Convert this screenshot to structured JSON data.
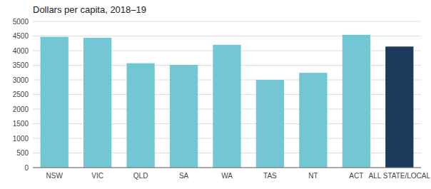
{
  "chart_data": {
    "type": "bar",
    "title": "Dollars per capita, 2018–19",
    "categories": [
      "NSW",
      "VIC",
      "QLD",
      "SA",
      "WA",
      "TAS",
      "NT",
      "ACT",
      "ALL STATE/LOCAL"
    ],
    "values": [
      4470,
      4440,
      3570,
      3510,
      4200,
      3000,
      3240,
      4540,
      4140
    ],
    "colors": [
      "#73C6D4",
      "#73C6D4",
      "#73C6D4",
      "#73C6D4",
      "#73C6D4",
      "#73C6D4",
      "#73C6D4",
      "#73C6D4",
      "#1B3A5C"
    ],
    "ylim": [
      0,
      5000
    ],
    "yticks": [
      0,
      500,
      1000,
      1500,
      2000,
      2500,
      3000,
      3500,
      4000,
      4500,
      5000
    ],
    "grid": true
  }
}
